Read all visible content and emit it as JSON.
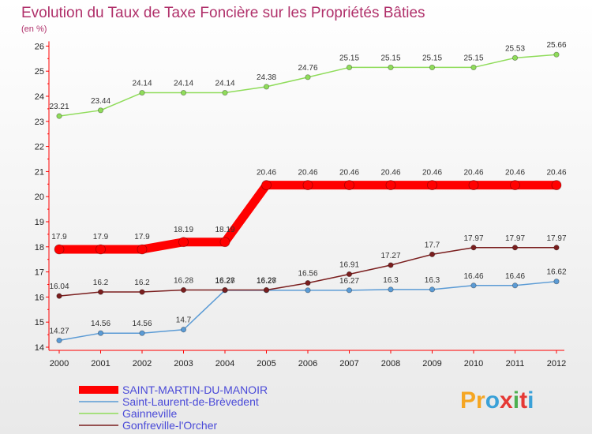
{
  "chart_data": {
    "type": "line",
    "title": "Evolution du Taux de Taxe Foncière sur les Propriétés Bâties",
    "subtitle": "(en %)",
    "x": [
      "2000",
      "2001",
      "2002",
      "2003",
      "2004",
      "2005",
      "2006",
      "2007",
      "2008",
      "2009",
      "2010",
      "2011",
      "2012"
    ],
    "ylim": [
      14,
      26
    ],
    "yticks": [
      "14",
      "15",
      "16",
      "17",
      "18",
      "19",
      "20",
      "21",
      "22",
      "23",
      "24",
      "25",
      "26"
    ],
    "grid": false,
    "legend_position": "bottom-left",
    "series": [
      {
        "name": "SAINT-MARTIN-DU-MANOIR",
        "color": "#ff0000",
        "values": [
          17.9,
          17.9,
          17.9,
          18.19,
          18.19,
          20.46,
          20.46,
          20.46,
          20.46,
          20.46,
          20.46,
          20.46,
          20.46
        ],
        "labels": [
          "17.9",
          "17.9",
          "17.9",
          "18.19",
          "18.19",
          "20.46",
          "20.46",
          "20.46",
          "20.46",
          "20.46",
          "20.46",
          "20.46",
          "20.46"
        ]
      },
      {
        "name": "Saint-Laurent-de-Brèvedent",
        "color": "#5b9bd5",
        "values": [
          14.27,
          14.56,
          14.56,
          14.7,
          16.27,
          16.27,
          16.27,
          16.27,
          16.3,
          16.3,
          16.46,
          16.46,
          16.62
        ],
        "labels": [
          "14.27",
          "14.56",
          "14.56",
          "14.7",
          "16.27",
          "16.27",
          "",
          "16.27",
          "16.3",
          "16.3",
          "16.46",
          "16.46",
          "16.62"
        ]
      },
      {
        "name": "Gainneville",
        "color": "#8fdc5a",
        "values": [
          23.21,
          23.44,
          24.14,
          24.14,
          24.14,
          24.38,
          24.76,
          25.15,
          25.15,
          25.15,
          25.15,
          25.53,
          25.66
        ],
        "labels": [
          "23.21",
          "23.44",
          "24.14",
          "24.14",
          "24.14",
          "24.38",
          "24.76",
          "25.15",
          "25.15",
          "25.15",
          "25.15",
          "25.53",
          "25.66"
        ]
      },
      {
        "name": "Gonfreville-l'Orcher",
        "color": "#7a1e1e",
        "values": [
          16.04,
          16.2,
          16.2,
          16.28,
          16.28,
          16.28,
          16.56,
          16.91,
          17.27,
          17.7,
          17.97,
          17.97,
          17.97
        ],
        "labels": [
          "16.04",
          "16.2",
          "16.2",
          "16.28",
          "16.28",
          "16.28",
          "16.56",
          "16.91",
          "17.27",
          "17.7",
          "17.97",
          "17.97",
          "17.97"
        ]
      }
    ]
  },
  "brand": {
    "text": "Proxiti"
  }
}
